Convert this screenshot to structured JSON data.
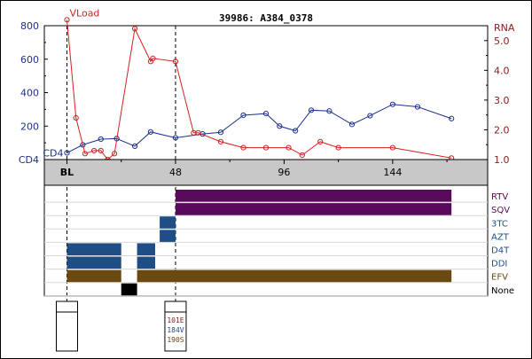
{
  "chart_data": {
    "title": "39986: A384_0378",
    "type": "line",
    "x_ticks": [
      "BL",
      "48",
      "96",
      "144"
    ],
    "x_tick_values": [
      0,
      48,
      96,
      144
    ],
    "xlim": [
      -10,
      186
    ],
    "left_axis": {
      "ticks": [
        "800",
        "600",
        "400",
        "200",
        "CD4"
      ],
      "ylim": [
        0,
        800
      ],
      "color": "#1c2f8f"
    },
    "right_axis": {
      "label": "RNA",
      "ticks": [
        "5.0",
        "4.0",
        "3.0",
        "2.0",
        "1.0"
      ],
      "ylim": [
        1.0,
        5.5
      ],
      "color": "#8b1a1a"
    },
    "series": [
      {
        "name": "CD4",
        "color": "#1c2f8f",
        "points": [
          [
            0,
            40
          ],
          [
            7,
            88
          ],
          [
            15,
            122
          ],
          [
            22,
            125
          ],
          [
            30,
            80
          ],
          [
            37,
            165
          ],
          [
            48,
            130
          ],
          [
            60,
            153
          ],
          [
            68,
            163
          ],
          [
            78,
            265
          ],
          [
            88,
            275
          ],
          [
            94,
            200
          ],
          [
            101,
            172
          ],
          [
            108,
            295
          ],
          [
            116,
            290
          ],
          [
            126,
            210
          ],
          [
            134,
            262
          ],
          [
            144,
            330
          ],
          [
            155,
            315
          ],
          [
            170,
            245
          ]
        ]
      },
      {
        "name": "VLoad",
        "color": "#d41f1f",
        "points": [
          [
            0,
            5.7
          ],
          [
            4,
            2.4
          ],
          [
            8,
            1.2
          ],
          [
            12,
            1.3
          ],
          [
            15,
            1.3
          ],
          [
            18,
            1.0
          ],
          [
            21,
            1.2
          ],
          [
            30,
            5.4
          ],
          [
            37,
            4.3
          ],
          [
            38,
            4.4
          ],
          [
            48,
            4.3
          ],
          [
            56,
            1.9
          ],
          [
            58,
            1.9
          ],
          [
            68,
            1.6
          ],
          [
            78,
            1.4
          ],
          [
            88,
            1.4
          ],
          [
            98,
            1.4
          ],
          [
            104,
            1.15
          ],
          [
            112,
            1.6
          ],
          [
            120,
            1.4
          ],
          [
            144,
            1.4
          ],
          [
            170,
            1.05
          ]
        ]
      }
    ],
    "drug_rows": [
      {
        "name": "RTV",
        "color": "#5a0a5a",
        "bars": [
          [
            48,
            170
          ]
        ]
      },
      {
        "name": "SQV",
        "color": "#5a0a5a",
        "bars": [
          [
            48,
            170
          ]
        ]
      },
      {
        "name": "3TC",
        "color": "#1f4e86",
        "bars": [
          [
            41,
            48
          ]
        ]
      },
      {
        "name": "AZT",
        "color": "#1f4e86",
        "bars": [
          [
            41,
            48
          ]
        ]
      },
      {
        "name": "D4T",
        "color": "#1f4e86",
        "bars": [
          [
            0,
            24
          ],
          [
            31,
            39
          ]
        ]
      },
      {
        "name": "DDI",
        "color": "#1f4e86",
        "bars": [
          [
            0,
            24
          ],
          [
            31,
            39
          ]
        ]
      },
      {
        "name": "EFV",
        "color": "#6b4a12",
        "bars": [
          [
            0,
            24
          ],
          [
            31,
            170
          ]
        ]
      },
      {
        "name": "None",
        "color": "#000000",
        "bars": [
          [
            24,
            31
          ]
        ]
      }
    ],
    "genotypes": [
      {
        "x": 0,
        "mutations": []
      },
      {
        "x": 48,
        "mutations": [
          {
            "text": "101E",
            "color": "#8b1a1a"
          },
          {
            "text": "184V",
            "color": "#1f4e86"
          },
          {
            "text": "190S",
            "color": "#6b4a12"
          }
        ]
      }
    ]
  }
}
